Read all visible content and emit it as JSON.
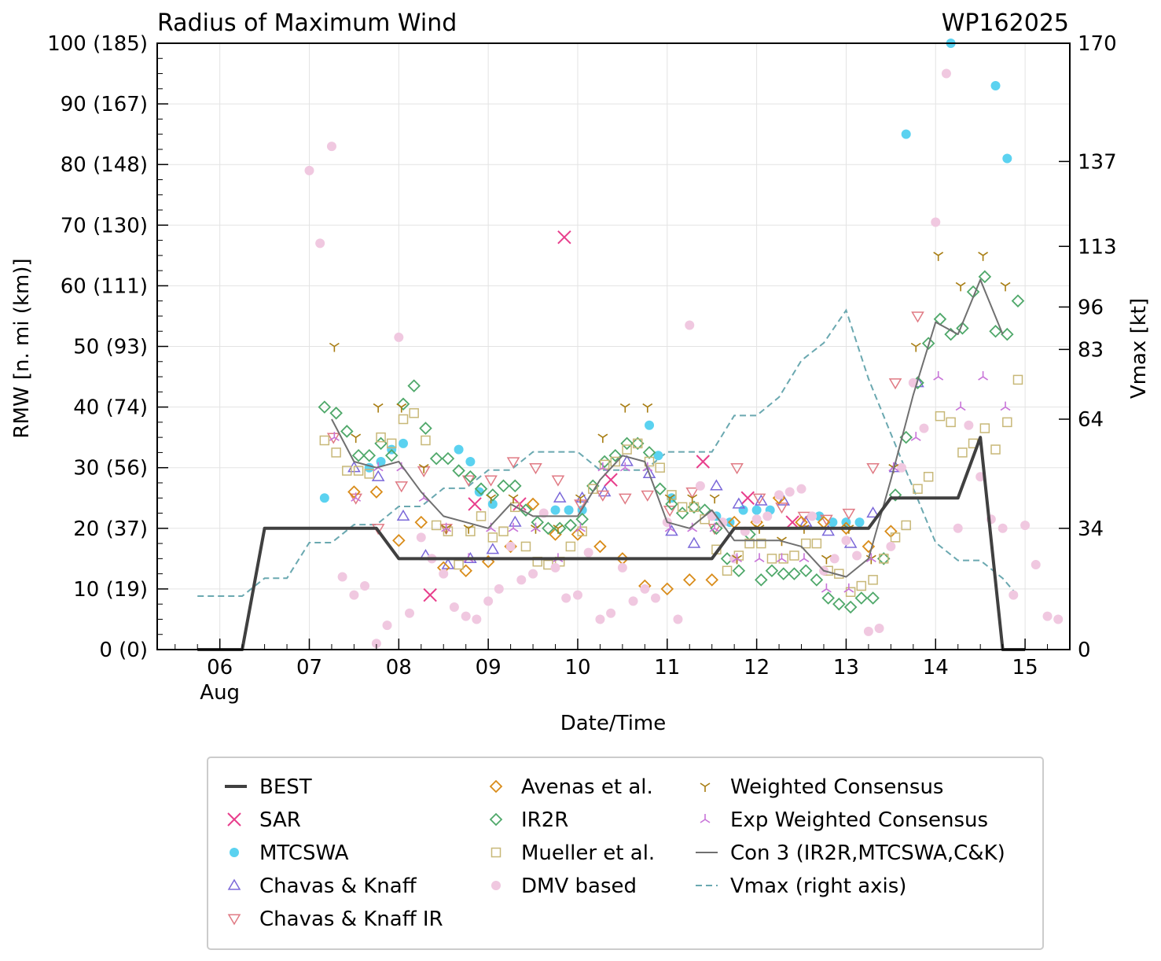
{
  "chart_data": {
    "type": "scatter",
    "title": "Radius of Maximum Wind",
    "storm_id": "WP162025",
    "xlabel": "Date/Time",
    "ylabel": "RMW [n. mi (km)]",
    "y2label": "Vmax [kt]",
    "xlim": [
      5.3,
      15.5
    ],
    "ylim": [
      0,
      100
    ],
    "x_ticks": [
      {
        "value": 6,
        "label": "06",
        "sub": "Aug"
      },
      {
        "value": 7,
        "label": "07"
      },
      {
        "value": 8,
        "label": "08"
      },
      {
        "value": 9,
        "label": "09"
      },
      {
        "value": 10,
        "label": "10"
      },
      {
        "value": 11,
        "label": "11"
      },
      {
        "value": 12,
        "label": "12"
      },
      {
        "value": 13,
        "label": "13"
      },
      {
        "value": 14,
        "label": "14"
      },
      {
        "value": 15,
        "label": "15"
      }
    ],
    "y_ticks": [
      {
        "value": 0,
        "label": "0 (0)"
      },
      {
        "value": 10,
        "label": "10 (19)"
      },
      {
        "value": 20,
        "label": "20 (37)"
      },
      {
        "value": 30,
        "label": "30 (56)"
      },
      {
        "value": 40,
        "label": "40 (74)"
      },
      {
        "value": 50,
        "label": "50 (93)"
      },
      {
        "value": 60,
        "label": "60 (111)"
      },
      {
        "value": 70,
        "label": "70 (130)"
      },
      {
        "value": 80,
        "label": "80 (148)"
      },
      {
        "value": 90,
        "label": "90 (167)"
      },
      {
        "value": 100,
        "label": "100 (185)"
      }
    ],
    "y2_ticks": [
      {
        "value": 0,
        "label": "0"
      },
      {
        "value": 34,
        "label": "34"
      },
      {
        "value": 64,
        "label": "64"
      },
      {
        "value": 83,
        "label": "83"
      },
      {
        "value": 96,
        "label": "96"
      },
      {
        "value": 113,
        "label": "113"
      },
      {
        "value": 137,
        "label": "137"
      },
      {
        "value": 170,
        "label": "170"
      }
    ],
    "y2_rmw_equivalent": [
      0,
      20,
      38,
      49.5,
      56.5,
      66.5,
      80.5,
      100
    ],
    "series": [
      {
        "name": "BEST",
        "marker": "line",
        "color": "#404040",
        "x": [
          5.75,
          6.25,
          6.5,
          6.75,
          7.0,
          7.25,
          7.5,
          7.75,
          8.0,
          8.25,
          8.5,
          8.75,
          9.0,
          9.25,
          9.5,
          9.75,
          10.0,
          10.25,
          10.5,
          10.75,
          11.0,
          11.25,
          11.5,
          11.75,
          12.0,
          12.25,
          12.5,
          12.75,
          13.0,
          13.25,
          13.5,
          13.75,
          14.0,
          14.25,
          14.5,
          14.75,
          15.0
        ],
        "y": [
          0,
          0,
          20,
          20,
          20,
          20,
          20,
          20,
          15,
          15,
          15,
          15,
          15,
          15,
          15,
          15,
          15,
          15,
          15,
          15,
          15,
          15,
          15,
          20,
          20,
          20,
          20,
          20,
          20,
          20,
          25,
          25,
          25,
          25,
          35,
          0,
          0
        ]
      },
      {
        "name": "SAR",
        "marker": "x",
        "color": "#e83e8c",
        "x": [
          8.35,
          8.85,
          9.35,
          9.85,
          10.37,
          11.4,
          11.9,
          12.4
        ],
        "y": [
          9,
          24,
          24,
          68,
          28,
          31,
          25,
          21
        ]
      },
      {
        "name": "MTCSWA",
        "marker": "dot",
        "color": "#5bd2f0",
        "x": [
          7.17,
          7.67,
          7.8,
          7.92,
          8.05,
          8.67,
          8.8,
          8.9,
          9.05,
          9.75,
          9.9,
          10.05,
          10.8,
          10.9,
          11.05,
          11.55,
          11.7,
          11.85,
          12.0,
          12.15,
          12.7,
          12.85,
          13.0,
          13.15,
          13.67,
          14.17,
          14.67,
          14.8
        ],
        "y": [
          25,
          30,
          31,
          33,
          34,
          33,
          31,
          26,
          24,
          23,
          23,
          23,
          37,
          32,
          25,
          22,
          21,
          23,
          23,
          23,
          22,
          21,
          21,
          21,
          85,
          100,
          93,
          81
        ]
      },
      {
        "name": "Chavas & Knaff",
        "marker": "tri-up",
        "color": "#7b68d9",
        "x": [
          7.5,
          7.77,
          8.05,
          8.3,
          8.55,
          8.8,
          9.05,
          9.3,
          9.8,
          10.05,
          10.3,
          10.55,
          10.8,
          11.05,
          11.3,
          11.55,
          11.8,
          12.05,
          12.3,
          12.55,
          12.8,
          13.05,
          13.3,
          13.55,
          13.8
        ],
        "y": [
          30,
          28.5,
          22,
          15.5,
          14,
          15,
          16.5,
          21,
          25,
          25,
          26,
          31,
          29,
          19.5,
          17.5,
          27,
          24,
          24.5,
          24.5,
          21,
          19.5,
          17.5,
          22.5,
          30,
          44
        ]
      },
      {
        "name": "Chavas & Knaff IR",
        "marker": "tri-down",
        "color": "#e07a84",
        "x": [
          7.27,
          7.52,
          7.77,
          8.03,
          8.28,
          8.53,
          8.78,
          9.03,
          9.28,
          9.53,
          9.78,
          10.03,
          10.28,
          10.53,
          10.78,
          11.03,
          11.28,
          11.53,
          11.78,
          12.03,
          12.28,
          12.53,
          12.78,
          13.03,
          13.3,
          13.55,
          13.8
        ],
        "y": [
          35,
          25,
          20,
          27,
          29.5,
          20,
          28,
          28,
          31,
          30,
          28,
          24,
          25.5,
          25,
          25.5,
          23,
          26,
          20,
          30,
          25,
          23.5,
          22,
          21.5,
          22.5,
          30,
          44,
          55
        ]
      },
      {
        "name": "Avenas et al.",
        "marker": "diamond",
        "color": "#d98c1a",
        "x": [
          7.5,
          7.75,
          8.0,
          8.25,
          8.5,
          8.75,
          9.0,
          9.25,
          9.5,
          9.75,
          10.0,
          10.25,
          10.5,
          10.75,
          11.0,
          11.25,
          11.5,
          11.75,
          12.0,
          12.25,
          12.5,
          12.75,
          13.0,
          13.25,
          13.5
        ],
        "y": [
          26,
          26,
          18,
          21,
          13.5,
          13,
          14.5,
          17,
          24,
          19,
          19,
          17,
          15,
          10.5,
          10,
          11.5,
          11.5,
          21,
          21,
          25,
          21,
          21,
          20,
          17,
          19.5
        ]
      },
      {
        "name": "IR2R",
        "marker": "diamond",
        "color": "#4fa86a",
        "x": [
          7.17,
          7.3,
          7.42,
          7.55,
          7.67,
          7.8,
          7.92,
          8.05,
          8.17,
          8.3,
          8.42,
          8.55,
          8.67,
          8.8,
          8.92,
          9.05,
          9.17,
          9.3,
          9.42,
          9.55,
          9.67,
          9.8,
          9.92,
          10.05,
          10.17,
          10.3,
          10.42,
          10.55,
          10.67,
          10.8,
          10.92,
          11.05,
          11.17,
          11.3,
          11.42,
          11.55,
          11.67,
          11.8,
          11.92,
          12.05,
          12.17,
          12.3,
          12.42,
          12.55,
          12.67,
          12.8,
          12.92,
          13.05,
          13.17,
          13.3,
          13.42,
          13.55,
          13.67,
          13.8,
          13.92,
          14.05,
          14.17,
          14.3,
          14.42,
          14.55,
          14.67,
          14.8,
          14.92
        ],
        "y": [
          40,
          39,
          36,
          32,
          32,
          34,
          32,
          40.5,
          43.5,
          36.5,
          31.5,
          31.5,
          29.5,
          28.5,
          26.5,
          25.5,
          27,
          27,
          23,
          21,
          20,
          20,
          20.5,
          21.5,
          27,
          31,
          32,
          34,
          34,
          32.5,
          26.5,
          24,
          22.5,
          23.5,
          23,
          20,
          15,
          13,
          19,
          11.5,
          13,
          12.5,
          12.5,
          13,
          11.5,
          8.5,
          7.5,
          7,
          8.5,
          8.5,
          15,
          25.5,
          35,
          44,
          50.5,
          54.5,
          52,
          53,
          59,
          61.5,
          52.5,
          52,
          57.5
        ]
      },
      {
        "name": "Mueller et al.",
        "marker": "square",
        "color": "#c8b878",
        "x": [
          7.17,
          7.3,
          7.42,
          7.55,
          7.67,
          7.8,
          7.92,
          8.05,
          8.17,
          8.3,
          8.42,
          8.55,
          8.67,
          8.8,
          8.92,
          9.05,
          9.17,
          9.3,
          9.42,
          9.55,
          9.67,
          9.8,
          9.92,
          10.05,
          10.17,
          10.3,
          10.42,
          10.55,
          10.67,
          10.8,
          10.92,
          11.05,
          11.17,
          11.3,
          11.42,
          11.55,
          11.67,
          11.8,
          11.92,
          12.05,
          12.17,
          12.3,
          12.42,
          12.55,
          12.67,
          12.8,
          12.92,
          13.05,
          13.17,
          13.3,
          13.42,
          13.55,
          13.67,
          13.8,
          13.92,
          14.05,
          14.17,
          14.3,
          14.42,
          14.55,
          14.67,
          14.8,
          14.92
        ],
        "y": [
          34.5,
          32.5,
          29.5,
          29.5,
          29,
          35,
          34,
          38,
          39,
          34.5,
          20.5,
          19.5,
          14,
          19.5,
          22,
          18.5,
          19.5,
          23.5,
          17,
          14.5,
          14,
          14.5,
          17,
          19.5,
          26.5,
          30.5,
          31,
          33,
          34,
          31,
          30,
          25.5,
          23.5,
          23.5,
          21.5,
          16.5,
          13,
          15.5,
          17.5,
          17.5,
          15,
          15,
          15.5,
          17.5,
          17.5,
          13,
          12.5,
          9.5,
          10.5,
          11.5,
          15,
          18.5,
          20.5,
          26.5,
          28.5,
          38.5,
          37.5,
          32.5,
          34,
          36.5,
          33,
          37.5,
          44.5
        ]
      },
      {
        "name": "DMV based",
        "marker": "dot",
        "color": "#f0c8e0",
        "x": [
          7.0,
          7.12,
          7.25,
          7.37,
          7.5,
          7.62,
          7.75,
          7.87,
          8.0,
          8.12,
          8.25,
          8.37,
          8.5,
          8.62,
          8.75,
          8.87,
          9.0,
          9.12,
          9.25,
          9.37,
          9.5,
          9.62,
          9.75,
          9.87,
          10.0,
          10.12,
          10.25,
          10.37,
          10.5,
          10.62,
          10.75,
          10.87,
          11.0,
          11.12,
          11.25,
          11.37,
          11.5,
          11.62,
          11.75,
          11.87,
          12.0,
          12.12,
          12.25,
          12.37,
          12.5,
          12.62,
          12.75,
          12.87,
          13.0,
          13.12,
          13.25,
          13.37,
          13.5,
          13.62,
          13.75,
          13.87,
          14.0,
          14.12,
          14.25,
          14.37,
          14.5,
          14.62,
          14.75,
          14.87,
          15.0,
          15.12,
          15.25,
          15.37
        ],
        "y": [
          79,
          67,
          83,
          12,
          9,
          10.5,
          1,
          4,
          51.5,
          6,
          18.5,
          15,
          12.5,
          7,
          5.5,
          5,
          8,
          10,
          17,
          11.5,
          12.5,
          22.5,
          13.5,
          8.5,
          9,
          16,
          5,
          6,
          13.5,
          8,
          10,
          8.5,
          21,
          5,
          53.5,
          27,
          22,
          21,
          15,
          19.5,
          21.5,
          22,
          25.5,
          26,
          26.5,
          22,
          13,
          15,
          18,
          15.5,
          3,
          3.5,
          17,
          30,
          44,
          36.5,
          70.5,
          95,
          20,
          37,
          28.5,
          21.5,
          20,
          9,
          20.5,
          14,
          5.5,
          5
        ]
      },
      {
        "name": "Weighted Consensus",
        "marker": "tri-y",
        "color": "#a87d12",
        "x": [
          7.28,
          7.52,
          7.77,
          8.03,
          8.28,
          8.53,
          8.78,
          9.03,
          9.28,
          9.53,
          9.78,
          10.03,
          10.28,
          10.53,
          10.78,
          11.03,
          11.28,
          11.53,
          11.78,
          12.03,
          12.28,
          12.53,
          12.78,
          13.03,
          13.28,
          13.53,
          13.78,
          14.03,
          14.28,
          14.53,
          14.78
        ],
        "y": [
          50,
          35,
          40,
          40,
          30,
          20,
          20,
          25,
          25,
          20,
          20,
          25,
          35,
          40,
          40,
          25,
          25,
          25,
          15,
          20,
          18,
          20,
          15,
          20,
          15,
          30,
          50,
          65,
          60,
          65,
          60
        ]
      },
      {
        "name": "Exp Weighted Consensus",
        "marker": "tri-inv-y",
        "color": "#c874d8",
        "x": [
          7.28,
          7.52,
          7.77,
          8.03,
          8.28,
          8.53,
          8.78,
          9.03,
          9.28,
          9.53,
          9.78,
          10.03,
          10.28,
          10.53,
          10.78,
          11.03,
          11.28,
          11.53,
          11.78,
          12.03,
          12.28,
          12.53,
          12.78,
          13.03,
          13.28,
          13.53,
          13.78,
          14.03,
          14.28,
          14.53,
          14.78
        ],
        "y": [
          35,
          25,
          30,
          30,
          25,
          20,
          15,
          20,
          20,
          20,
          15,
          20,
          30,
          30,
          30,
          20,
          20,
          20,
          15,
          15,
          15,
          15,
          10,
          10,
          15,
          30,
          35,
          45,
          40,
          45,
          40
        ]
      },
      {
        "name": "Con 3 (IR2R,MTCSWA,C&K)",
        "marker": "line",
        "color": "#707070",
        "x": [
          7.25,
          7.5,
          7.75,
          8.0,
          8.25,
          8.5,
          8.75,
          9.0,
          9.25,
          9.5,
          9.75,
          10.0,
          10.25,
          10.5,
          10.75,
          11.0,
          11.25,
          11.5,
          11.75,
          12.0,
          12.25,
          12.5,
          12.75,
          13.0,
          13.25,
          13.5,
          13.75,
          14.0,
          14.25,
          14.5,
          14.75
        ],
        "y": [
          38,
          31,
          30,
          31,
          26,
          22,
          21,
          20,
          24,
          22,
          22,
          22,
          28,
          32,
          31,
          21,
          20,
          23,
          18,
          18,
          18,
          17,
          13,
          12,
          15,
          28,
          42,
          54,
          52,
          61,
          52
        ]
      }
    ],
    "vmax_series": {
      "name": "Vmax (right axis)",
      "marker": "dashed-line",
      "color": "#6aa8b0",
      "x": [
        5.75,
        6.0,
        6.25,
        6.5,
        6.75,
        7.0,
        7.25,
        7.5,
        7.75,
        8.0,
        8.25,
        8.5,
        8.75,
        9.0,
        9.25,
        9.5,
        9.75,
        10.0,
        10.25,
        10.5,
        10.75,
        11.0,
        11.25,
        11.5,
        11.75,
        12.0,
        12.25,
        12.5,
        12.75,
        13.0,
        13.25,
        13.5,
        13.75,
        14.0,
        14.25,
        14.5,
        14.75,
        14.92
      ],
      "y_kt": [
        15,
        15,
        15,
        20,
        20,
        30,
        30,
        35,
        35,
        40,
        40,
        45,
        45,
        50,
        50,
        55,
        55,
        55,
        50,
        50,
        50,
        55,
        55,
        55,
        65,
        65,
        70,
        80,
        85,
        95,
        75,
        60,
        45,
        30,
        25,
        25,
        20,
        15
      ]
    }
  },
  "legend": {
    "items": [
      {
        "label": "BEST"
      },
      {
        "label": "SAR"
      },
      {
        "label": "MTCSWA"
      },
      {
        "label": "Chavas & Knaff"
      },
      {
        "label": "Chavas & Knaff IR"
      },
      {
        "label": "Avenas et al."
      },
      {
        "label": "IR2R"
      },
      {
        "label": "Mueller et al."
      },
      {
        "label": "DMV based"
      },
      {
        "label": "Weighted Consensus"
      },
      {
        "label": "Exp Weighted Consensus"
      },
      {
        "label": "Con 3 (IR2R,MTCSWA,C&K)"
      },
      {
        "label": "Vmax (right axis)"
      }
    ]
  }
}
